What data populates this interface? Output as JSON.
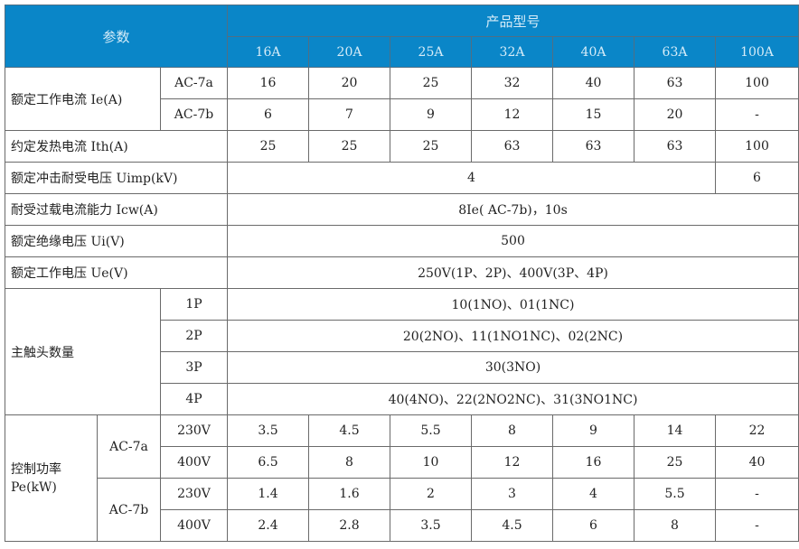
{
  "header": {
    "param": "参数",
    "product_model": "产品型号",
    "models": [
      "16A",
      "20A",
      "25A",
      "32A",
      "40A",
      "63A",
      "100A"
    ]
  },
  "rated_current": {
    "label": "额定工作电流 Ie(A)",
    "ac7a": {
      "label": "AC-7a",
      "values": [
        "16",
        "20",
        "25",
        "32",
        "40",
        "63",
        "100"
      ]
    },
    "ac7b": {
      "label": "AC-7b",
      "values": [
        "6",
        "7",
        "9",
        "12",
        "15",
        "20",
        "-"
      ]
    }
  },
  "thermal_current": {
    "label": "约定发热电流 Ith(A)",
    "values": [
      "25",
      "25",
      "25",
      "63",
      "63",
      "63",
      "100"
    ]
  },
  "impulse_voltage": {
    "label": "额定冲击耐受电压 Uimp(kV)",
    "value_16_63": "4",
    "value_100": "6"
  },
  "overload": {
    "label": "耐受过载电流能力 Icw(A)",
    "value": "8Ie( AC-7b)，10s"
  },
  "insulation_voltage": {
    "label": "额定绝缘电压 Ui(V)",
    "value": "500"
  },
  "operating_voltage": {
    "label": "额定工作电压 Ue(V)",
    "value": "250V(1P、2P)、400V(3P、4P)"
  },
  "contacts": {
    "label": "主触头数量",
    "rows": [
      {
        "pole": "1P",
        "value": "10(1NO)、01(1NC)"
      },
      {
        "pole": "2P",
        "value": "20(2NO)、11(1NO1NC)、02(2NC)"
      },
      {
        "pole": "3P",
        "value": "30(3NO)"
      },
      {
        "pole": "4P",
        "value": "40(4NO)、22(2NO2NC)、31(3NO1NC)"
      }
    ]
  },
  "control_power": {
    "label": "控制功率",
    "unit": "Pe(kW)",
    "ac7a": {
      "label": "AC-7a",
      "v230": {
        "label": "230V",
        "values": [
          "3.5",
          "4.5",
          "5.5",
          "8",
          "9",
          "14",
          "22"
        ]
      },
      "v400": {
        "label": "400V",
        "values": [
          "6.5",
          "8",
          "10",
          "12",
          "16",
          "25",
          "40"
        ]
      }
    },
    "ac7b": {
      "label": "AC-7b",
      "v230": {
        "label": "230V",
        "values": [
          "1.4",
          "1.6",
          "2",
          "3",
          "4",
          "5.5",
          "-"
        ]
      },
      "v400": {
        "label": "400V",
        "values": [
          "2.4",
          "2.8",
          "3.5",
          "4.5",
          "6",
          "8",
          "-"
        ]
      }
    }
  }
}
